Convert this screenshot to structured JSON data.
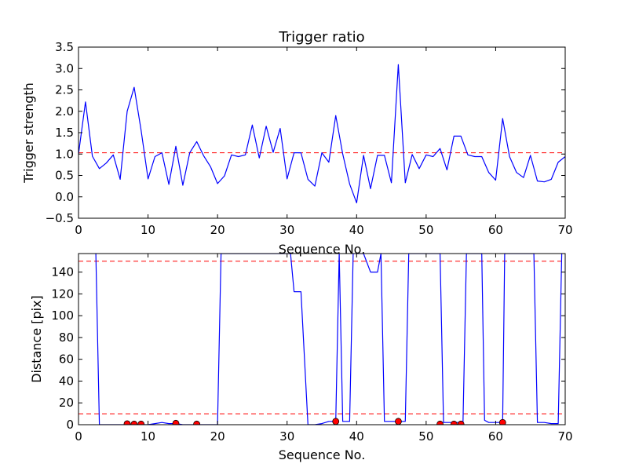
{
  "chart_data": [
    {
      "type": "line",
      "title": "Trigger ratio",
      "xlabel": "Sequence No.",
      "ylabel": "Trigger strength",
      "xlim": [
        0,
        70
      ],
      "ylim": [
        -0.5,
        3.5
      ],
      "xticks": [
        "0",
        "10",
        "20",
        "30",
        "40",
        "50",
        "60",
        "70"
      ],
      "yticks": [
        "−0.5",
        "0.0",
        "0.5",
        "1.0",
        "1.5",
        "2.0",
        "2.5",
        "3.0",
        "3.5"
      ],
      "grid": false,
      "series": [
        {
          "color": "#0000ff",
          "x": [
            0,
            1,
            2,
            3,
            4,
            5,
            6,
            7,
            8,
            9,
            10,
            11,
            12,
            13,
            14,
            15,
            16,
            17,
            18,
            19,
            20,
            21,
            22,
            23,
            24,
            25,
            26,
            27,
            28,
            29,
            30,
            31,
            32,
            33,
            34,
            35,
            36,
            37,
            38,
            39,
            40,
            41,
            42,
            43,
            44,
            45,
            46,
            47,
            48,
            49,
            50,
            51,
            52,
            53,
            54,
            55,
            56,
            57,
            58,
            59,
            60,
            61,
            62,
            63,
            64,
            65,
            66,
            67,
            68,
            69,
            70
          ],
          "values": [
            1.0,
            2.22,
            0.95,
            0.66,
            0.79,
            0.98,
            0.41,
            2.0,
            2.56,
            1.56,
            0.42,
            0.94,
            1.03,
            0.29,
            1.18,
            0.27,
            1.03,
            1.29,
            0.96,
            0.7,
            0.31,
            0.49,
            0.98,
            0.94,
            0.98,
            1.68,
            0.91,
            1.65,
            1.04,
            1.6,
            0.42,
            1.03,
            1.03,
            0.41,
            0.25,
            1.03,
            0.81,
            1.9,
            1.0,
            0.3,
            -0.14,
            0.97,
            0.19,
            0.97,
            0.97,
            0.33,
            3.09,
            0.33,
            0.99,
            0.66,
            0.98,
            0.94,
            1.13,
            0.63,
            1.42,
            1.42,
            0.98,
            0.94,
            0.94,
            0.57,
            0.39,
            1.83,
            0.94,
            0.57,
            0.45,
            0.97,
            0.37,
            0.35,
            0.41,
            0.81,
            0.94
          ]
        }
      ],
      "hlines": [
        {
          "y": 1.03,
          "color": "#ff0000",
          "style": "dashed"
        }
      ]
    },
    {
      "type": "line",
      "xlabel": "Sequence No.",
      "ylabel": "Distance [pix]",
      "xlim": [
        0,
        70
      ],
      "ylim": [
        0,
        157
      ],
      "xticks": [
        "0",
        "10",
        "20",
        "30",
        "40",
        "50",
        "60",
        "70"
      ],
      "yticks": [
        "0",
        "20",
        "40",
        "60",
        "80",
        "100",
        "120",
        "140"
      ],
      "grid": false,
      "series": [
        {
          "color": "#0000ff",
          "x": [
            2.5,
            3,
            4,
            5,
            6,
            7,
            8,
            9,
            10,
            11,
            12,
            13,
            14,
            15,
            16,
            17,
            18,
            19,
            20,
            20.5,
            30.5,
            31,
            32,
            33,
            34,
            35,
            36,
            37,
            37.5,
            38,
            39,
            39.5,
            40,
            41,
            42,
            43,
            43.5,
            44,
            45,
            46,
            47,
            47.5,
            52,
            52.5,
            53,
            54,
            55,
            55.3,
            55.8,
            58,
            58.4,
            59,
            60,
            61,
            61.3,
            65.5,
            66,
            67,
            68,
            69,
            69.5
          ],
          "values": [
            157,
            0,
            0,
            0,
            0,
            0,
            0,
            0,
            0,
            1,
            2,
            1,
            1,
            0,
            0,
            0,
            0,
            0,
            0,
            157,
            157,
            122,
            122,
            0,
            0,
            1,
            3,
            3,
            157,
            3,
            3,
            157,
            157,
            157,
            140,
            140,
            157,
            3,
            3,
            3,
            3,
            157,
            157,
            2,
            2,
            2,
            2,
            2,
            157,
            157,
            4,
            2,
            2,
            2,
            157,
            157,
            2,
            2,
            1,
            1,
            157
          ]
        }
      ],
      "markers": {
        "color": "#ff0000",
        "x": [
          7,
          8,
          9,
          14,
          17,
          37,
          46,
          52,
          54,
          55,
          61
        ],
        "values": [
          0.8,
          0.5,
          0.5,
          1.2,
          0.5,
          3,
          3,
          0.5,
          0.5,
          0.5,
          2
        ]
      },
      "hlines": [
        {
          "y": 10,
          "color": "#ff0000",
          "style": "dashed"
        },
        {
          "y": 150,
          "color": "#ff0000",
          "style": "dashed"
        }
      ]
    }
  ]
}
